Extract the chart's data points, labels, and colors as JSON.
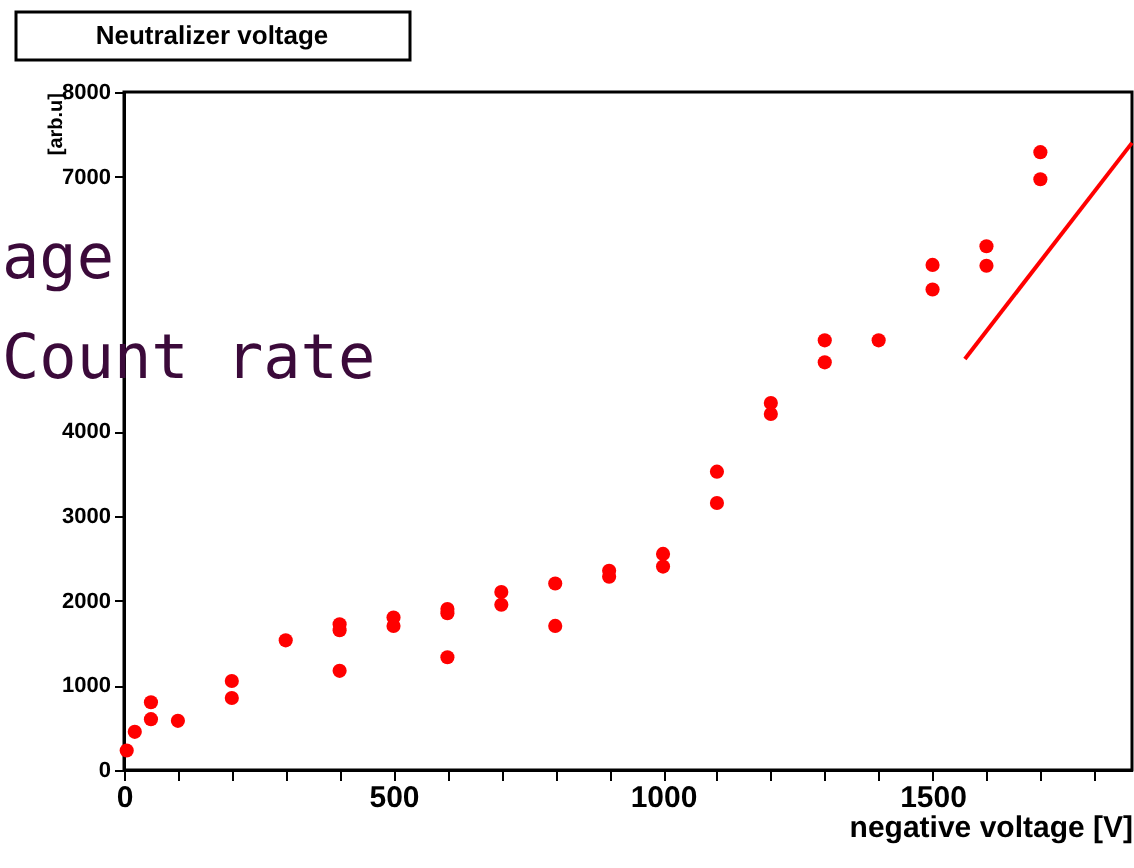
{
  "chart_data": {
    "type": "scatter",
    "title": "Neutralizer voltage",
    "xlabel": "negative voltage [V]",
    "ylabel": "[arb.u]",
    "annotations": [
      "age",
      "Count rate"
    ],
    "xlim": [
      0,
      1870
    ],
    "ylim": [
      0,
      8000
    ],
    "xticks": [
      0,
      {
        "value": 100,
        "label": null
      },
      {
        "value": 200,
        "label": null
      },
      {
        "value": 300,
        "label": null
      },
      {
        "value": 400,
        "label": null
      },
      500,
      {
        "value": 600,
        "label": null
      },
      {
        "value": 700,
        "label": null
      },
      {
        "value": 800,
        "label": null
      },
      {
        "value": 900,
        "label": null
      },
      1000,
      {
        "value": 1100,
        "label": null
      },
      {
        "value": 1200,
        "label": null
      },
      {
        "value": 1300,
        "label": null
      },
      {
        "value": 1400,
        "label": null
      },
      1500,
      {
        "value": 1600,
        "label": null
      },
      {
        "value": 1700,
        "label": null
      },
      {
        "value": 1800,
        "label": null
      }
    ],
    "yticks": [
      0,
      1000,
      2000,
      3000,
      4000,
      7000,
      8000
    ],
    "grid": false,
    "series": [
      {
        "marker": "circle",
        "color": "#ff0000",
        "x": [
          5,
          20,
          50,
          50,
          100,
          200,
          200,
          300,
          400,
          400,
          400,
          500,
          500,
          600,
          600,
          600,
          700,
          700,
          800,
          800,
          900,
          900,
          1000,
          1000,
          1100,
          1100,
          1200,
          1200,
          1300,
          1300,
          1400,
          1500,
          1500,
          1600,
          1600,
          1700,
          1700
        ],
        "values": [
          230,
          450,
          600,
          800,
          580,
          850,
          1050,
          1530,
          1170,
          1650,
          1720,
          1700,
          1800,
          1330,
          1850,
          1900,
          1950,
          2100,
          1700,
          2200,
          2280,
          2350,
          2400,
          2550,
          3150,
          3520,
          4200,
          4330,
          4810,
          5070,
          5070,
          5670,
          5960,
          5950,
          6180,
          6970,
          7290
        ]
      },
      {
        "type": "line",
        "color": "#ff0000",
        "x": [
          1560,
          1870
        ],
        "values": [
          4850,
          7400
        ]
      }
    ]
  }
}
